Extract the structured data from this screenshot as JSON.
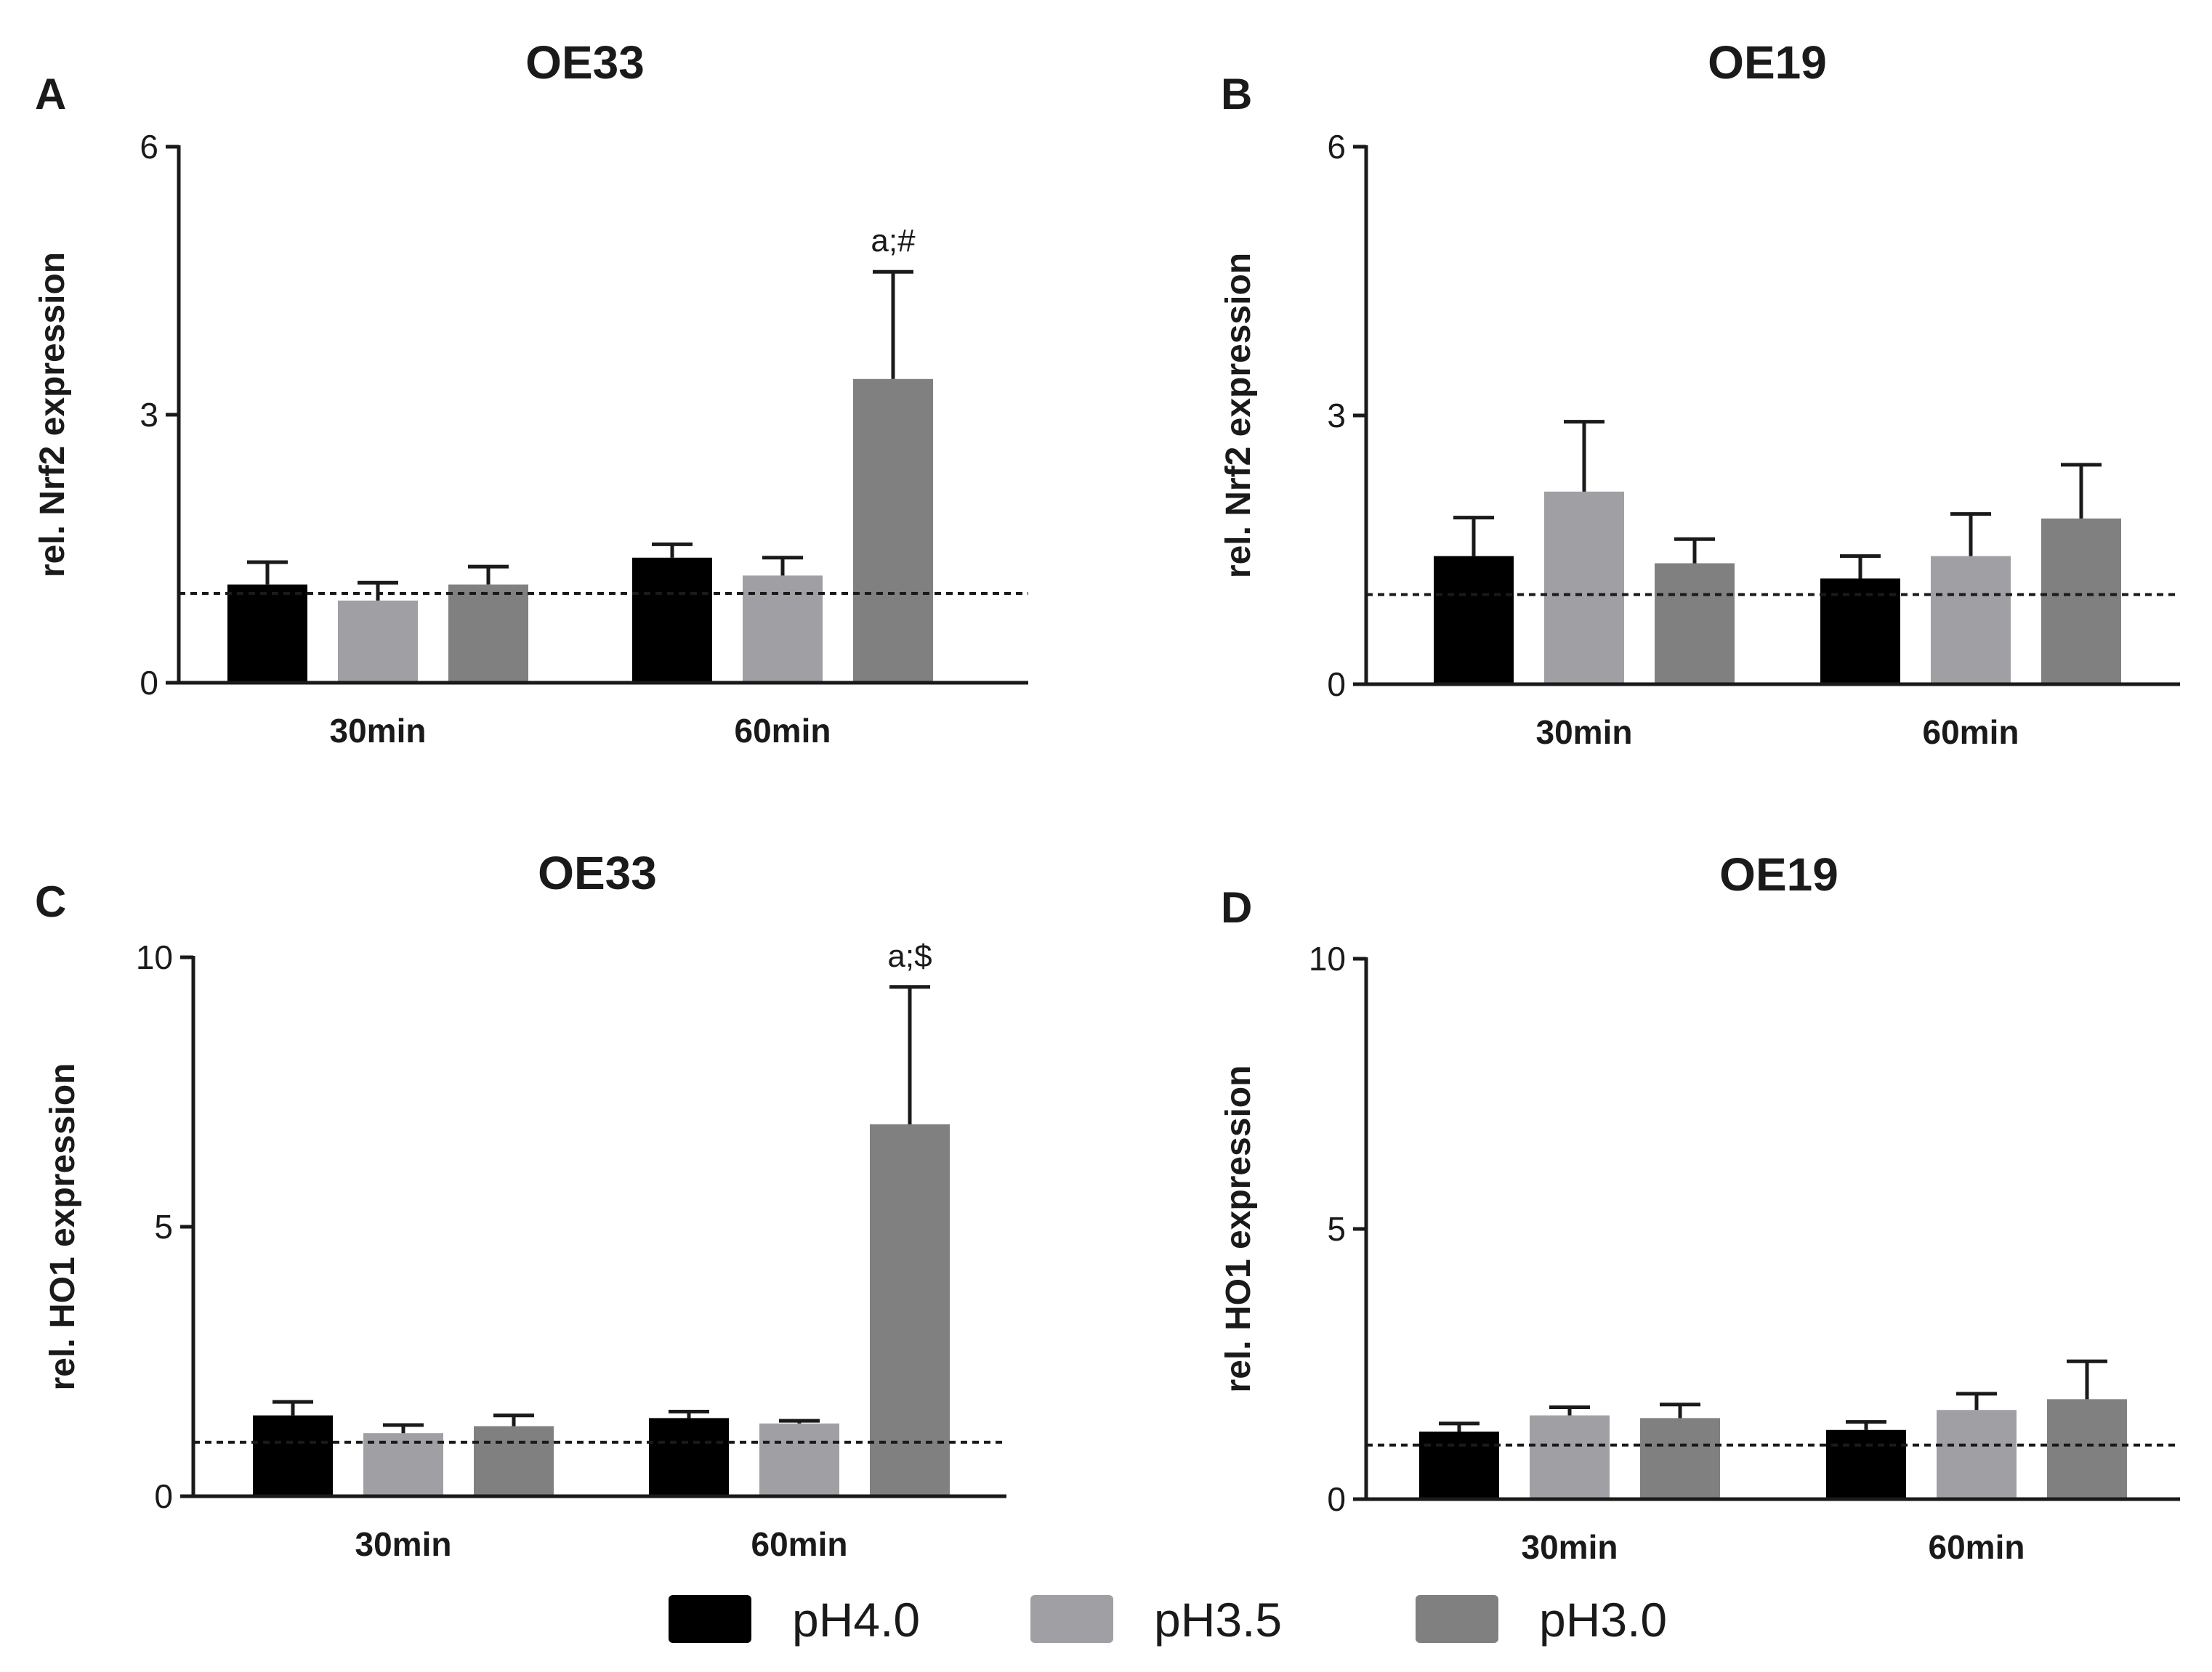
{
  "colors": {
    "pH4.0": "#000000",
    "pH3.5": "#a0a0a4",
    "pH3.0": "#808080",
    "axis": "#1a1a1a",
    "reference_line": "#1a1a1a"
  },
  "legend": {
    "items": [
      {
        "label": "pH4.0",
        "color": "#000000"
      },
      {
        "label": "pH3.5",
        "color": "#a0a0a4"
      },
      {
        "label": "pH3.0",
        "color": "#808080"
      }
    ]
  },
  "chart_data": [
    {
      "panel": "A",
      "type": "bar",
      "title": "OE33",
      "ylabel": "rel. Nrf2 expression",
      "xlabel": "",
      "ylim": [
        0,
        6
      ],
      "yticks": [
        0,
        3,
        6
      ],
      "reference_line": 1,
      "categories": [
        "30min",
        "60min"
      ],
      "series": [
        {
          "name": "pH4.0",
          "values": [
            1.1,
            1.4
          ],
          "errors": [
            0.25,
            0.15
          ]
        },
        {
          "name": "pH3.5",
          "values": [
            0.92,
            1.2
          ],
          "errors": [
            0.2,
            0.2
          ]
        },
        {
          "name": "pH3.0",
          "values": [
            1.1,
            3.4
          ],
          "errors": [
            0.2,
            1.2
          ]
        }
      ],
      "annotations": [
        {
          "category": "60min",
          "series": "pH3.0",
          "text": "a;#"
        }
      ]
    },
    {
      "panel": "B",
      "type": "bar",
      "title": "OE19",
      "ylabel": "rel. Nrf2 expression",
      "xlabel": "",
      "ylim": [
        0,
        6
      ],
      "yticks": [
        0,
        3,
        6
      ],
      "reference_line": 1,
      "categories": [
        "30min",
        "60min"
      ],
      "series": [
        {
          "name": "pH4.0",
          "values": [
            1.43,
            1.18
          ],
          "errors": [
            0.43,
            0.25
          ]
        },
        {
          "name": "pH3.5",
          "values": [
            2.15,
            1.43
          ],
          "errors": [
            0.78,
            0.47
          ]
        },
        {
          "name": "pH3.0",
          "values": [
            1.35,
            1.85
          ],
          "errors": [
            0.27,
            0.6
          ]
        }
      ],
      "annotations": []
    },
    {
      "panel": "C",
      "type": "bar",
      "title": "OE33",
      "ylabel": "rel. HO1 expression",
      "xlabel": "",
      "ylim": [
        0,
        10
      ],
      "yticks": [
        0,
        5,
        10
      ],
      "reference_line": 1,
      "categories": [
        "30min",
        "60min"
      ],
      "series": [
        {
          "name": "pH4.0",
          "values": [
            1.5,
            1.45
          ],
          "errors": [
            0.25,
            0.12
          ]
        },
        {
          "name": "pH3.5",
          "values": [
            1.17,
            1.35
          ],
          "errors": [
            0.15,
            0.05
          ]
        },
        {
          "name": "pH3.0",
          "values": [
            1.3,
            6.9
          ],
          "errors": [
            0.2,
            2.55
          ]
        }
      ],
      "annotations": [
        {
          "category": "60min",
          "series": "pH3.0",
          "text": "a;$"
        }
      ]
    },
    {
      "panel": "D",
      "type": "bar",
      "title": "OE19",
      "ylabel": "rel. HO1 expression",
      "xlabel": "",
      "ylim": [
        0,
        10
      ],
      "yticks": [
        0,
        5,
        10
      ],
      "reference_line": 1,
      "categories": [
        "30min",
        "60min"
      ],
      "series": [
        {
          "name": "pH4.0",
          "values": [
            1.25,
            1.28
          ],
          "errors": [
            0.15,
            0.15
          ]
        },
        {
          "name": "pH3.5",
          "values": [
            1.55,
            1.65
          ],
          "errors": [
            0.15,
            0.3
          ]
        },
        {
          "name": "pH3.0",
          "values": [
            1.5,
            1.85
          ],
          "errors": [
            0.25,
            0.7
          ]
        }
      ],
      "annotations": []
    }
  ]
}
